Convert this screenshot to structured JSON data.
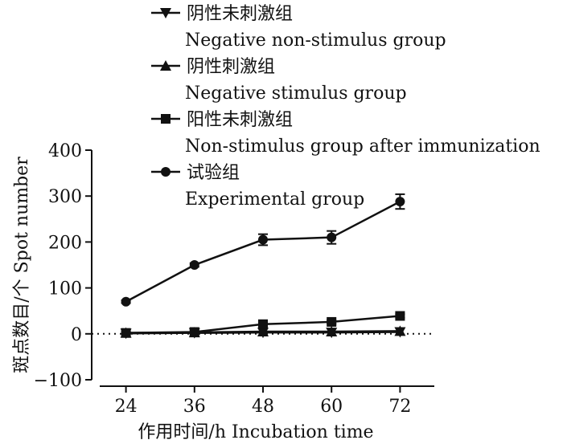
{
  "chart_data": {
    "type": "line",
    "xlabel": "作用时间/h Incubation time",
    "ylabel": "斑点数目/个 Spot number",
    "x": [
      24,
      36,
      48,
      60,
      72
    ],
    "xlim": [
      18,
      78
    ],
    "ylim": [
      -100,
      400
    ],
    "yticks": [
      -100,
      0,
      100,
      200,
      300,
      400
    ],
    "reference_line_y": 0,
    "grid": false,
    "legend_position": "top",
    "series": [
      {
        "name_cn": "阴性未刺激组",
        "name_en": "Negative non-stimulus group",
        "marker": "triangle-down",
        "values": [
          1,
          2,
          3,
          3,
          4
        ],
        "errors": [
          0,
          0,
          0,
          0,
          0
        ]
      },
      {
        "name_cn": "阴性刺激组",
        "name_en": "Negative stimulus group",
        "marker": "triangle-up",
        "values": [
          2,
          3,
          5,
          5,
          6
        ],
        "errors": [
          0,
          0,
          0,
          0,
          0
        ]
      },
      {
        "name_cn": "阳性未刺激组",
        "name_en": "Non-stimulus group after immunization",
        "marker": "square",
        "values": [
          2,
          4,
          21,
          26,
          39
        ],
        "errors": [
          2,
          2,
          4,
          4,
          4
        ]
      },
      {
        "name_cn": "试验组",
        "name_en": "Experimental group",
        "marker": "circle",
        "values": [
          70,
          150,
          205,
          210,
          288
        ],
        "errors": [
          3,
          4,
          12,
          14,
          16
        ]
      }
    ]
  }
}
